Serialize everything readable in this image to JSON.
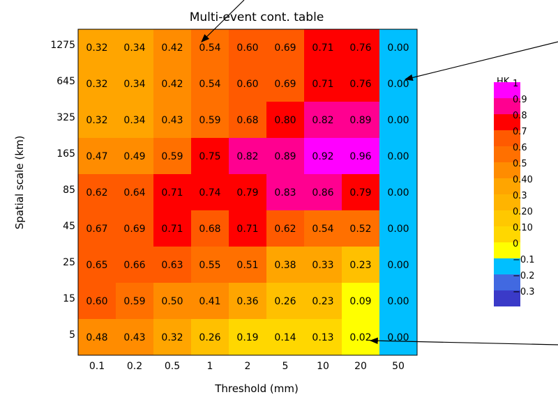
{
  "chart_data": {
    "type": "heatmap",
    "title": "Multi-event cont. table",
    "xlabel": "Threshold (mm)",
    "ylabel": "Spatial scale (km)",
    "x_categories": [
      "0.1",
      "0.2",
      "0.5",
      "1",
      "2",
      "5",
      "10",
      "20",
      "50"
    ],
    "y_categories": [
      "1275",
      "645",
      "325",
      "165",
      "85",
      "45",
      "25",
      "15",
      "5"
    ],
    "values": [
      [
        0.32,
        0.34,
        0.42,
        0.54,
        0.6,
        0.69,
        0.71,
        0.76,
        0.0
      ],
      [
        0.32,
        0.34,
        0.42,
        0.54,
        0.6,
        0.69,
        0.71,
        0.76,
        0.0
      ],
      [
        0.32,
        0.34,
        0.43,
        0.59,
        0.68,
        0.8,
        0.82,
        0.89,
        0.0
      ],
      [
        0.47,
        0.49,
        0.59,
        0.75,
        0.82,
        0.89,
        0.92,
        0.96,
        0.0
      ],
      [
        0.62,
        0.64,
        0.71,
        0.74,
        0.79,
        0.83,
        0.86,
        0.79,
        0.0
      ],
      [
        0.67,
        0.69,
        0.71,
        0.68,
        0.71,
        0.62,
        0.54,
        0.52,
        0.0
      ],
      [
        0.65,
        0.66,
        0.63,
        0.55,
        0.51,
        0.38,
        0.33,
        0.23,
        0.0
      ],
      [
        0.6,
        0.59,
        0.5,
        0.41,
        0.36,
        0.26,
        0.23,
        0.09,
        0.0
      ],
      [
        0.48,
        0.43,
        0.32,
        0.26,
        0.19,
        0.14,
        0.13,
        0.02,
        0.0
      ]
    ],
    "value_labels": [
      [
        "0.32",
        "0.34",
        "0.42",
        "0.54",
        "0.60",
        "0.69",
        "0.71",
        "0.76",
        "0.00"
      ],
      [
        "0.32",
        "0.34",
        "0.42",
        "0.54",
        "0.60",
        "0.69",
        "0.71",
        "0.76",
        "0.00"
      ],
      [
        "0.32",
        "0.34",
        "0.43",
        "0.59",
        "0.68",
        "0.80",
        "0.82",
        "0.89",
        "0.00"
      ],
      [
        "0.47",
        "0.49",
        "0.59",
        "0.75",
        "0.82",
        "0.89",
        "0.92",
        "0.96",
        "0.00"
      ],
      [
        "0.62",
        "0.64",
        "0.71",
        "0.74",
        "0.79",
        "0.83",
        "0.86",
        "0.79",
        "0.00"
      ],
      [
        "0.67",
        "0.69",
        "0.71",
        "0.68",
        "0.71",
        "0.62",
        "0.54",
        "0.52",
        "0.00"
      ],
      [
        "0.65",
        "0.66",
        "0.63",
        "0.55",
        "0.51",
        "0.38",
        "0.33",
        "0.23",
        "0.00"
      ],
      [
        "0.60",
        "0.59",
        "0.50",
        "0.41",
        "0.36",
        "0.26",
        "0.23",
        "0.09",
        "0.00"
      ],
      [
        "0.48",
        "0.43",
        "0.32",
        "0.26",
        "0.19",
        "0.14",
        "0.13",
        "0.02",
        "0.00"
      ]
    ],
    "cell_colors": [
      [
        "#ffa500",
        "#ffa500",
        "#ff8c00",
        "#ff7000",
        "#ff5a00",
        "#ff5a00",
        "#ff0000",
        "#ff0000",
        "#00bfff"
      ],
      [
        "#ffa500",
        "#ffa500",
        "#ff8c00",
        "#ff7000",
        "#ff5a00",
        "#ff5a00",
        "#ff0000",
        "#ff0000",
        "#00bfff"
      ],
      [
        "#ffa500",
        "#ffa500",
        "#ff8c00",
        "#ff7000",
        "#ff5a00",
        "#ff0000",
        "#ff0090",
        "#ff0090",
        "#00bfff"
      ],
      [
        "#ff8c00",
        "#ff8c00",
        "#ff7000",
        "#ff0000",
        "#ff0090",
        "#ff0090",
        "#ff00ff",
        "#ff00ff",
        "#00bfff"
      ],
      [
        "#ff5a00",
        "#ff5a00",
        "#ff0000",
        "#ff0000",
        "#ff0000",
        "#ff0090",
        "#ff0090",
        "#ff0000",
        "#00bfff"
      ],
      [
        "#ff5a00",
        "#ff5a00",
        "#ff0000",
        "#ff5a00",
        "#ff0000",
        "#ff5a00",
        "#ff7000",
        "#ff7000",
        "#00bfff"
      ],
      [
        "#ff5a00",
        "#ff5a00",
        "#ff5a00",
        "#ff7000",
        "#ff7000",
        "#ffa500",
        "#ffa500",
        "#ffc000",
        "#00bfff"
      ],
      [
        "#ff5a00",
        "#ff7000",
        "#ff8c00",
        "#ff8c00",
        "#ffa500",
        "#ffc000",
        "#ffc000",
        "#ffff00",
        "#00bfff"
      ],
      [
        "#ff8c00",
        "#ff8c00",
        "#ffa500",
        "#ffc000",
        "#ffd700",
        "#ffd700",
        "#ffd700",
        "#ffff00",
        "#00bfff"
      ]
    ],
    "colorbar": {
      "title": "HK",
      "labels": [
        "1",
        "0.9",
        "0.8",
        "0.7",
        "0.6",
        "0.5",
        "0.40",
        "0.3",
        "0.20",
        "0.10",
        "0",
        "−0.1",
        "−0.2",
        "−0.3"
      ],
      "colors": [
        "#ff00ff",
        "#ff0090",
        "#ff0000",
        "#ff5a00",
        "#ff7000",
        "#ff8c00",
        "#ffa500",
        "#ffb400",
        "#ffc800",
        "#ffd700",
        "#ffff00",
        "#00bfff",
        "#4169e1",
        "#3a3ac8"
      ]
    },
    "annotations": [
      {
        "type": "arrow",
        "target_cell": [
          0,
          3
        ]
      },
      {
        "type": "arrow",
        "target_cell": [
          1,
          8
        ]
      },
      {
        "type": "arrow",
        "target_cell": [
          8,
          7
        ]
      }
    ]
  }
}
